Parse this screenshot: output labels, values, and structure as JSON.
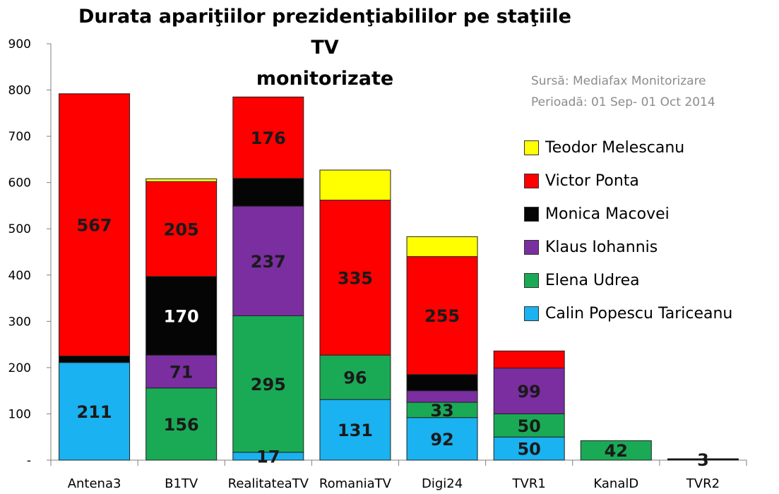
{
  "chart_data": {
    "type": "bar",
    "stacked": true,
    "title": "Durata apariţiilor prezidenţiabililor pe staţiile TV monitorizate",
    "title_lines": [
      "Durata apariţiilor prezidenţiabililor pe staţiile TV",
      "monitorizate"
    ],
    "source_lines": [
      "Sursă: Mediafax Monitorizare",
      "Perioadă: 01 Sep- 01 Oct 2014"
    ],
    "categories": [
      "Antena3",
      "B1TV",
      "RealitateaTV",
      "RomaniaTV",
      "Digi24",
      "TVR1",
      "KanalD",
      "TVR2"
    ],
    "ylim": [
      0,
      900
    ],
    "yticks": [
      0,
      100,
      200,
      300,
      400,
      500,
      600,
      700,
      800,
      900
    ],
    "ytick_labels": [
      "-",
      "100",
      "200",
      "300",
      "400",
      "500",
      "600",
      "700",
      "800",
      "900"
    ],
    "grid": false,
    "legend_position": "right",
    "series": [
      {
        "name": "Calin Popescu Tariceanu",
        "color": "#1ab2f0",
        "values": [
          211,
          0,
          17,
          131,
          92,
          50,
          0,
          0
        ]
      },
      {
        "name": "Elena Udrea",
        "color": "#1aaa55",
        "values": [
          0,
          156,
          295,
          96,
          33,
          50,
          42,
          0
        ]
      },
      {
        "name": "Klaus Iohannis",
        "color": "#7a2ea0",
        "values": [
          0,
          71,
          237,
          0,
          25,
          99,
          0,
          0
        ]
      },
      {
        "name": "Monica Macovei",
        "color": "#050505",
        "values": [
          14,
          170,
          60,
          0,
          35,
          0,
          0,
          3
        ]
      },
      {
        "name": "Victor Ponta",
        "color": "#ff0000",
        "values": [
          567,
          205,
          176,
          335,
          255,
          37,
          0,
          0
        ]
      },
      {
        "name": "Teodor Melescanu",
        "color": "#ffff00",
        "values": [
          0,
          6,
          0,
          65,
          43,
          0,
          0,
          0
        ]
      }
    ],
    "data_labels": [
      {
        "category": "Antena3",
        "series": "Calin Popescu Tariceanu",
        "text": "211"
      },
      {
        "category": "Antena3",
        "series": "Victor Ponta",
        "text": "567"
      },
      {
        "category": "B1TV",
        "series": "Elena Udrea",
        "text": "156"
      },
      {
        "category": "B1TV",
        "series": "Klaus Iohannis",
        "text": "71"
      },
      {
        "category": "B1TV",
        "series": "Monica Macovei",
        "text": "170"
      },
      {
        "category": "B1TV",
        "series": "Victor Ponta",
        "text": "205"
      },
      {
        "category": "RealitateaTV",
        "series": "Calin Popescu Tariceanu",
        "text": "17"
      },
      {
        "category": "RealitateaTV",
        "series": "Elena Udrea",
        "text": "295"
      },
      {
        "category": "RealitateaTV",
        "series": "Klaus Iohannis",
        "text": "237"
      },
      {
        "category": "RealitateaTV",
        "series": "Victor Ponta",
        "text": "176"
      },
      {
        "category": "RomaniaTV",
        "series": "Calin Popescu Tariceanu",
        "text": "131"
      },
      {
        "category": "RomaniaTV",
        "series": "Elena Udrea",
        "text": "96"
      },
      {
        "category": "RomaniaTV",
        "series": "Victor Ponta",
        "text": "335"
      },
      {
        "category": "Digi24",
        "series": "Calin Popescu Tariceanu",
        "text": "92"
      },
      {
        "category": "Digi24",
        "series": "Elena Udrea",
        "text": "33"
      },
      {
        "category": "Digi24",
        "series": "Victor Ponta",
        "text": "255"
      },
      {
        "category": "TVR1",
        "series": "Calin Popescu Tariceanu",
        "text": "50"
      },
      {
        "category": "TVR1",
        "series": "Elena Udrea",
        "text": "50"
      },
      {
        "category": "TVR1",
        "series": "Klaus Iohannis",
        "text": "99"
      },
      {
        "category": "KanalD",
        "series": "Elena Udrea",
        "text": "42"
      },
      {
        "category": "TVR2",
        "series": "Monica Macovei",
        "text": "3"
      }
    ]
  },
  "legend": [
    {
      "label": "Teodor Melescanu",
      "color": "#ffff00"
    },
    {
      "label": "Victor Ponta",
      "color": "#ff0000"
    },
    {
      "label": "Monica Macovei",
      "color": "#050505"
    },
    {
      "label": "Klaus Iohannis",
      "color": "#7a2ea0"
    },
    {
      "label": "Elena Udrea",
      "color": "#1aaa55"
    },
    {
      "label": "Calin Popescu Tariceanu",
      "color": "#1ab2f0"
    }
  ]
}
